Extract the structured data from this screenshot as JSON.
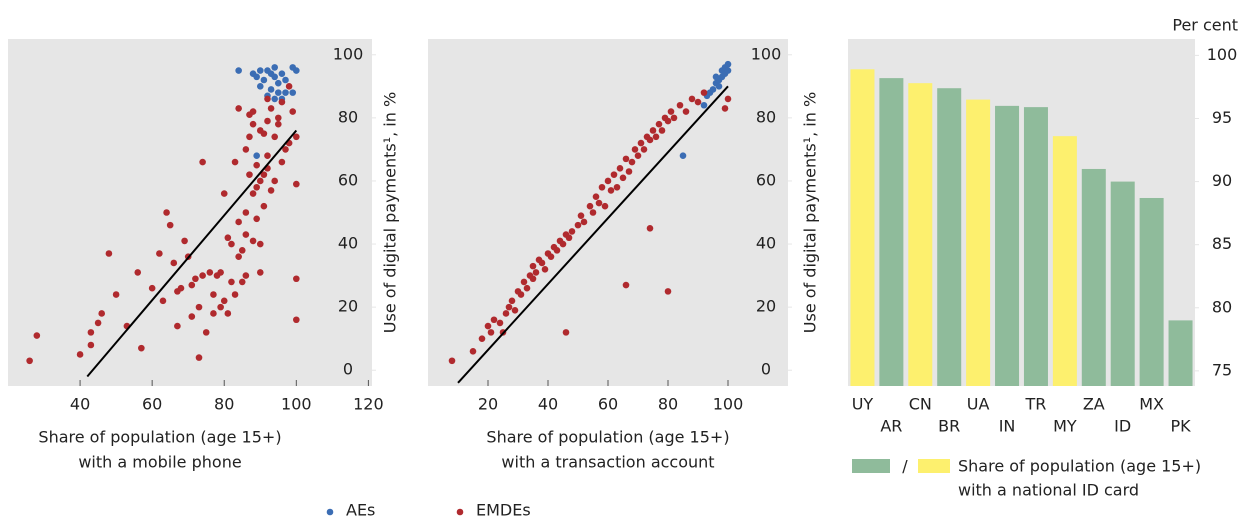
{
  "chart_data": [
    {
      "type": "scatter",
      "xlabel": [
        "Share of population (age 15+)",
        "with a mobile phone"
      ],
      "ylabel": "Use of digital payments¹, in %",
      "xlim": [
        20,
        121
      ],
      "xticks": [
        40,
        60,
        80,
        100,
        120
      ],
      "ylim": [
        -5,
        105
      ],
      "yticks": [
        0,
        20,
        40,
        60,
        80,
        100
      ],
      "fit_line": {
        "x": [
          42,
          100
        ],
        "y": [
          -2,
          76
        ]
      },
      "series": [
        {
          "name": "AEs",
          "color": "#3b6db4",
          "x": [
            84,
            88,
            89,
            90,
            91,
            92,
            93,
            94,
            94,
            95,
            96,
            97,
            99,
            100,
            95,
            92,
            94,
            89,
            97,
            90,
            93,
            96,
            99
          ],
          "values": [
            95,
            94,
            93,
            95,
            92,
            95,
            94,
            96,
            93,
            91,
            94,
            88,
            96,
            95,
            88,
            87,
            86,
            68,
            92,
            90,
            89,
            86,
            88
          ]
        },
        {
          "name": "EMDEs",
          "color": "#b02a2e",
          "x": [
            26,
            28,
            40,
            48,
            46,
            45,
            43,
            43,
            50,
            53,
            56,
            57,
            60,
            62,
            63,
            64,
            65,
            66,
            67,
            67,
            68,
            69,
            70,
            71,
            71,
            72,
            73,
            73,
            74,
            74,
            75,
            76,
            77,
            77,
            78,
            79,
            79,
            80,
            80,
            81,
            81,
            82,
            82,
            83,
            83,
            84,
            84,
            85,
            85,
            86,
            86,
            86,
            87,
            87,
            87,
            88,
            88,
            88,
            89,
            89,
            89,
            90,
            90,
            90,
            91,
            91,
            91,
            92,
            92,
            92,
            93,
            93,
            94,
            94,
            95,
            95,
            96,
            96,
            97,
            98,
            99,
            100,
            100,
            100,
            100,
            84,
            86,
            92,
            98,
            90,
            88
          ],
          "values": [
            3,
            11,
            5,
            37,
            18,
            15,
            12,
            8,
            24,
            14,
            31,
            7,
            26,
            37,
            22,
            50,
            46,
            34,
            25,
            14,
            26,
            41,
            36,
            27,
            17,
            29,
            20,
            4,
            66,
            30,
            12,
            31,
            24,
            18,
            30,
            20,
            31,
            56,
            22,
            42,
            18,
            40,
            28,
            24,
            66,
            36,
            47,
            38,
            28,
            30,
            50,
            43,
            62,
            74,
            81,
            56,
            78,
            41,
            65,
            48,
            58,
            40,
            60,
            31,
            62,
            75,
            52,
            64,
            79,
            68,
            83,
            57,
            74,
            60,
            80,
            78,
            85,
            66,
            70,
            72,
            82,
            74,
            59,
            29,
            16,
            83,
            70,
            86,
            90,
            76,
            82
          ]
        }
      ]
    },
    {
      "type": "scatter",
      "xlabel": [
        "Share of population (age 15+)",
        "with a transaction account"
      ],
      "ylabel": "Use of digital payments¹, in %",
      "xlim": [
        0,
        120
      ],
      "xticks": [
        20,
        40,
        60,
        80,
        100
      ],
      "ylim": [
        -5,
        105
      ],
      "yticks": [
        0,
        20,
        40,
        60,
        80,
        100
      ],
      "fit_line": {
        "x": [
          10,
          100
        ],
        "y": [
          -4,
          90
        ]
      },
      "series": [
        {
          "color": "#3b6db4",
          "x": [
            85,
            92,
            93,
            94,
            95,
            96,
            97,
            97,
            98,
            98,
            99,
            99,
            100,
            100,
            96
          ],
          "values": [
            68,
            84,
            87,
            88,
            89,
            91,
            92,
            90,
            93,
            95,
            94,
            96,
            97,
            95,
            93
          ]
        },
        {
          "color": "#b02a2e",
          "x": [
            8,
            15,
            18,
            20,
            21,
            22,
            24,
            25,
            26,
            27,
            28,
            29,
            30,
            31,
            32,
            33,
            34,
            35,
            35,
            36,
            37,
            38,
            39,
            40,
            41,
            42,
            43,
            44,
            45,
            46,
            46,
            47,
            48,
            50,
            51,
            52,
            54,
            55,
            56,
            57,
            58,
            59,
            60,
            61,
            62,
            63,
            64,
            65,
            66,
            66,
            67,
            68,
            69,
            70,
            71,
            72,
            73,
            74,
            74,
            75,
            76,
            77,
            78,
            79,
            80,
            80,
            81,
            82,
            84,
            86,
            88,
            90,
            92,
            99,
            100
          ],
          "values": [
            3,
            6,
            10,
            14,
            12,
            16,
            15,
            12,
            18,
            20,
            22,
            19,
            25,
            24,
            28,
            26,
            30,
            33,
            29,
            31,
            35,
            34,
            32,
            37,
            36,
            39,
            38,
            41,
            40,
            12,
            43,
            42,
            44,
            46,
            49,
            47,
            52,
            50,
            55,
            53,
            58,
            52,
            60,
            57,
            62,
            58,
            64,
            61,
            27,
            67,
            63,
            66,
            70,
            68,
            72,
            70,
            74,
            45,
            73,
            76,
            74,
            78,
            76,
            80,
            25,
            79,
            82,
            80,
            84,
            82,
            86,
            85,
            88,
            83,
            86
          ]
        }
      ]
    },
    {
      "type": "bar",
      "unit_label": "Per cent",
      "categories": [
        "UY",
        "AR",
        "CN",
        "BR",
        "UA",
        "IN",
        "TR",
        "MY",
        "ZA",
        "ID",
        "MX",
        "PK"
      ],
      "values": [
        98.9,
        98.2,
        97.8,
        97.4,
        96.5,
        96.0,
        95.9,
        93.6,
        91.0,
        90.0,
        88.7,
        79.0
      ],
      "colors": [
        "#fdf06e",
        "#8fbb9b",
        "#fdf06e",
        "#8fbb9b",
        "#fdf06e",
        "#8fbb9b",
        "#8fbb9b",
        "#fdf06e",
        "#8fbb9b",
        "#8fbb9b",
        "#8fbb9b",
        "#8fbb9b"
      ],
      "ylim": [
        73.8,
        101.3
      ],
      "yticks": [
        75,
        80,
        85,
        90,
        95,
        100
      ],
      "legend_colors": [
        "#8fbb9b",
        "#fdf06e"
      ],
      "legend_separator": "/",
      "legend_label": [
        "Share of population (age 15+)",
        "with a national ID card"
      ]
    }
  ]
}
